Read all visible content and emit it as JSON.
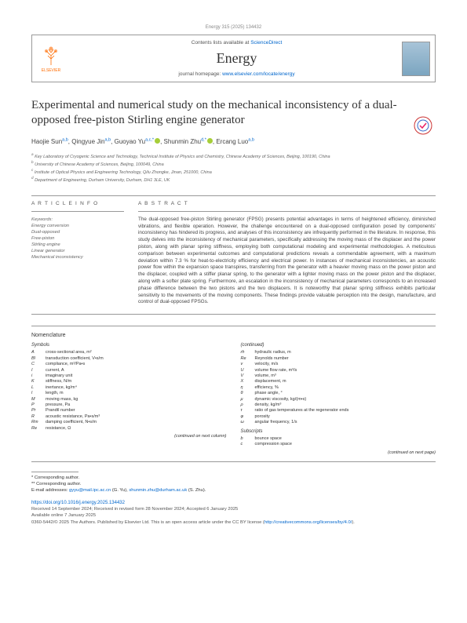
{
  "journal_ref": "Energy 315 (2025) 134432",
  "contents_line_prefix": "Contents lists available at ",
  "contents_link": "ScienceDirect",
  "journal_name": "Energy",
  "homepage_prefix": "journal homepage: ",
  "homepage_link": "www.elsevier.com/locate/energy",
  "elsevier_label": "ELSEVIER",
  "title": "Experimental and numerical study on the mechanical inconsistency of a dual-opposed free-piston Stirling engine generator",
  "authors": {
    "a1": {
      "name": "Haojie Sun",
      "sup": "a,b"
    },
    "a2": {
      "name": "Qingyue Jin",
      "sup": "a,b"
    },
    "a3": {
      "name": "Guoyao Yu",
      "sup": "a,c,*"
    },
    "a4": {
      "name": "Shunmin Zhu",
      "sup": "d,*"
    },
    "a5": {
      "name": "Ercang Luo",
      "sup": "a,b"
    }
  },
  "affiliations": {
    "a": "Key Laboratory of Cryogenic Science and Technology, Technical Institute of Physics and Chemistry, Chinese Academy of Sciences, Beijing, 100190, China",
    "b": "University of Chinese Academy of Sciences, Beijing, 100049, China",
    "c": "Institute of Optical Physics and Engineering Technology, Qilu Zhongke, Jinan, 251000, China",
    "d": "Department of Engineering, Durham University, Durham, DH1 3LE, UK"
  },
  "article_info_head": "A R T I C L E  I N F O",
  "abstract_head": "A B S T R A C T",
  "keywords_label": "Keywords:",
  "keywords": [
    "Energy conversion",
    "Dual-opposed",
    "Free-piston",
    "Stirling engine",
    "Linear generator",
    "Mechanical inconsistency"
  ],
  "abstract": "The dual-opposed free-piston Stirling generator (FPSG) presents potential advantages in terms of heightened efficiency, diminished vibrations, and flexible operation. However, the challenge encountered on a dual-opposed configuration posed by components' inconsistency has hindered its progress, and analyses of this inconsistency are infrequently performed in the literature. In response, this study delves into the inconsistency of mechanical parameters, specifically addressing the moving mass of the displacer and the power piston, along with planar spring stiffness, employing both computational modeling and experimental methodologies. A meticulous comparison between experimental outcomes and computational predictions reveals a commendable agreement, with a maximum deviation within 7.3 % for heat-to-electricity efficiency and electrical power. In instances of mechanical inconsistencies, an acoustic power flow within the expansion space transpires, transferring from the generator with a heavier moving mass on the power piston and the displacer, coupled with a stiffer planar spring, to the generator with a lighter moving mass on the power piston and the displacer, along with a softer plate spring. Furthermore, an escalation in the inconsistency of mechanical parameters corresponds to an increased phase difference between the two pistons and the two displacers. It is noteworthy that planar spring stiffness exhibits particular sensitivity to the movements of the moving components. These findings provide valuable perception into the design, manufacture, and control of dual-opposed FPSGs.",
  "nomen_title": "Nomenclature",
  "nomen_symbols_label": "Symbols",
  "nomen_left": [
    {
      "sym": "A",
      "desc": "cross-sectional area, m²"
    },
    {
      "sym": "Bl",
      "desc": "transduction coefficient, V•s/m"
    },
    {
      "sym": "C",
      "desc": "compliance, m³/Pa•s"
    },
    {
      "sym": "I",
      "desc": "current, A"
    },
    {
      "sym": "i",
      "desc": "imaginary unit"
    },
    {
      "sym": "K",
      "desc": "stiffness, N/m"
    },
    {
      "sym": "L",
      "desc": "inertance, kg/m⁴"
    },
    {
      "sym": "l",
      "desc": "length, m"
    },
    {
      "sym": "M",
      "desc": "moving mass, kg"
    },
    {
      "sym": "P",
      "desc": "pressure, Pa"
    },
    {
      "sym": "Pr",
      "desc": "Prandtl number"
    },
    {
      "sym": "R",
      "desc": "acoustic resistance, Pa•s/m³"
    },
    {
      "sym": "Rm",
      "desc": "damping coefficient, N•s/m"
    },
    {
      "sym": "Re",
      "desc": "resistance, Ω"
    }
  ],
  "nomen_right": [
    {
      "sym": "rh",
      "desc": "hydraulic radius, m"
    },
    {
      "sym": "Re",
      "desc": "Reynolds number"
    },
    {
      "sym": "v",
      "desc": "velocity, m/s"
    },
    {
      "sym": "U",
      "desc": "volume flow rate, m³/s"
    },
    {
      "sym": "V",
      "desc": "volume, m³"
    },
    {
      "sym": "X",
      "desc": "displacement, m"
    },
    {
      "sym": "η",
      "desc": "efficiency, %"
    },
    {
      "sym": "θ",
      "desc": "phase angle, °"
    },
    {
      "sym": "μ",
      "desc": "dynamic viscosity, kg/(m•s)"
    },
    {
      "sym": "ρ",
      "desc": "density, kg/m³"
    },
    {
      "sym": "τ",
      "desc": "ratio of gas temperatures at the regenerator ends"
    },
    {
      "sym": "φ",
      "desc": "porosity"
    },
    {
      "sym": "ω",
      "desc": "angular frequency, 1/s"
    }
  ],
  "subscripts_label": "Subscripts",
  "subscripts": [
    {
      "sym": "b",
      "desc": "bounce space"
    },
    {
      "sym": "c",
      "desc": "compression space"
    }
  ],
  "cont_next": "(continued on next column)",
  "cont_next2": "(continued on next page)",
  "corresponding1": "* Corresponding author.",
  "corresponding2": "** Corresponding author.",
  "email_label": "E-mail addresses: ",
  "email1": "gyyu@mail.ipc.ac.cn",
  "email1_name": " (G. Yu), ",
  "email2": "shunmin.zhu@durham.ac.uk",
  "email2_name": " (S. Zhu).",
  "doi": "https://doi.org/10.1016/j.energy.2025.134432",
  "received": "Received 14 September 2024; Received in revised form 28 November 2024; Accepted 6 January 2025",
  "available": "Available online 7 January 2025",
  "license_prefix": "0360-5442/© 2025 The Authors. Published by Elsevier Ltd. This is an open access article under the CC BY license (",
  "license_link": "http://creativecommons.org/licenses/by/4.0/",
  "license_suffix": ").",
  "colors": {
    "link": "#0066cc",
    "orcid": "#a6ce39",
    "elsevier": "#ff6b00"
  }
}
